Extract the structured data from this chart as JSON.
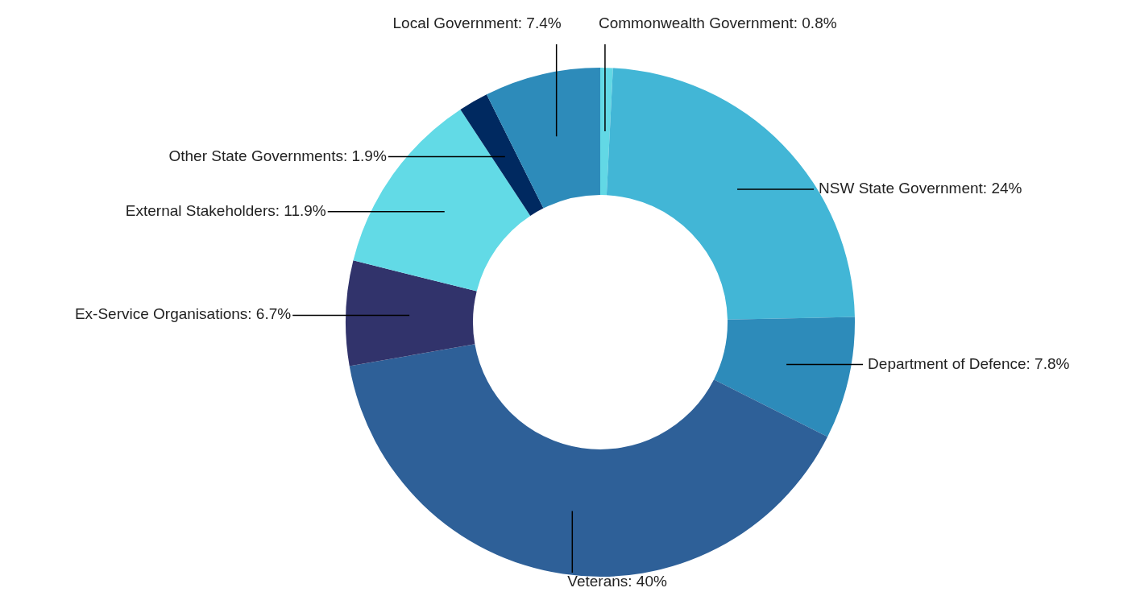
{
  "chart_data": {
    "type": "donut",
    "categories": [
      "Commonwealth Government",
      "NSW State Government",
      "Department of Defence",
      "Veterans",
      "Ex-Service Organisations",
      "External Stakeholders",
      "Other State Governments",
      "Local Government"
    ],
    "values": [
      0.8,
      24,
      7.8,
      40,
      6.7,
      11.9,
      1.9,
      7.4
    ],
    "colors": [
      "#62d8e5",
      "#42b6d6",
      "#2d8bba",
      "#2e6098",
      "#31336b",
      "#62dae6",
      "#002960",
      "#2d8bba"
    ],
    "value_labels": [
      "0.8%",
      "24%",
      "7.8%",
      "40%",
      "6.7%",
      "11.9%",
      "1.9%",
      "7.4%"
    ]
  }
}
